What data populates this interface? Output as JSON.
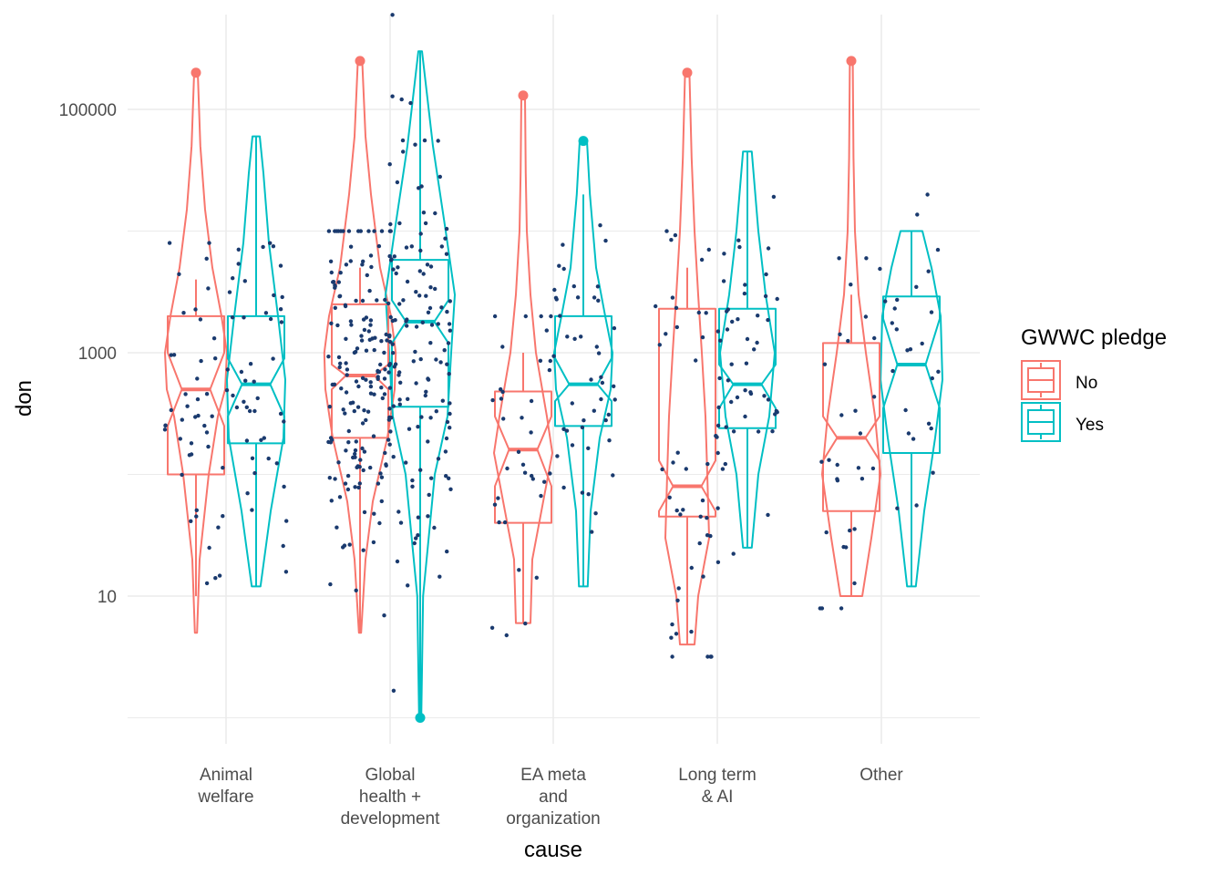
{
  "chart_data": {
    "type": "violin",
    "overlays": [
      "notched-boxplot",
      "jittered-points",
      "outlier-points"
    ],
    "xlabel": "cause",
    "ylabel": "don",
    "y_scale": "log10",
    "y_ticks": [
      10,
      1000,
      100000
    ],
    "ylim": [
      1,
      350000
    ],
    "grid": true,
    "legend": {
      "title": "GWWC pledge",
      "position": "right",
      "entries": [
        "No",
        "Yes"
      ]
    },
    "colors": {
      "No": "#F8766D",
      "Yes": "#00BFC4",
      "points": "#1a3a6e",
      "grid": "#ebebeb"
    },
    "categories": [
      [
        "Animal",
        "welfare"
      ],
      [
        "Global",
        "health +",
        "development"
      ],
      [
        "EA meta",
        "and",
        "organization"
      ],
      [
        "Long term",
        "& AI"
      ],
      [
        "Other"
      ]
    ],
    "series": [
      {
        "name": "No",
        "boxes": [
          {
            "lower": 10,
            "q1": 100,
            "median": 500,
            "q3": 2000,
            "upper": 4000,
            "notch": [
              250,
              1000
            ],
            "outliers": [
              200000
            ]
          },
          {
            "lower": 5,
            "q1": 200,
            "median": 650,
            "q3": 2500,
            "upper": 5000,
            "notch": [
              500,
              800
            ],
            "outliers": [
              250000
            ]
          },
          {
            "lower": 6,
            "q1": 40,
            "median": 160,
            "q3": 480,
            "upper": 1000,
            "notch": [
              80,
              300
            ],
            "outliers": [
              130000
            ]
          },
          {
            "lower": 4,
            "q1": 45,
            "median": 80,
            "q3": 2300,
            "upper": 5000,
            "notch": [
              50,
              130
            ],
            "outliers": [
              200000
            ]
          },
          {
            "lower": 10,
            "q1": 50,
            "median": 200,
            "q3": 1200,
            "upper": 3000,
            "notch": [
              130,
              300
            ],
            "outliers": [
              250000
            ]
          }
        ],
        "violins": [
          {
            "y": [
              5,
              20,
              100,
              300,
              500,
              1000,
              2000,
              5000,
              15000,
              50000,
              200000
            ],
            "width": [
              0.03,
              0.1,
              0.35,
              0.6,
              0.8,
              0.85,
              0.7,
              0.45,
              0.25,
              0.12,
              0.05
            ]
          },
          {
            "y": [
              5,
              20,
              60,
              200,
              500,
              1000,
              2000,
              5000,
              20000,
              60000,
              250000
            ],
            "width": [
              0.03,
              0.15,
              0.35,
              0.75,
              0.95,
              0.98,
              0.85,
              0.55,
              0.3,
              0.15,
              0.06
            ]
          },
          {
            "y": [
              6,
              20,
              60,
              150,
              300,
              1000,
              3000,
              10000,
              30000,
              130000
            ],
            "width": [
              0.2,
              0.25,
              0.55,
              0.8,
              0.65,
              0.35,
              0.2,
              0.1,
              0.07,
              0.05
            ]
          },
          {
            "y": [
              4,
              10,
              30,
              100,
              300,
              1000,
              3000,
              10000,
              40000,
              200000
            ],
            "width": [
              0.2,
              0.3,
              0.6,
              0.55,
              0.5,
              0.4,
              0.3,
              0.2,
              0.12,
              0.06
            ]
          },
          {
            "y": [
              10,
              30,
              100,
              300,
              1000,
              3000,
              10000,
              40000,
              250000
            ],
            "width": [
              0.3,
              0.55,
              0.8,
              0.65,
              0.4,
              0.2,
              0.1,
              0.06,
              0.04
            ]
          }
        ]
      },
      {
        "name": "Yes",
        "boxes": [
          {
            "lower": 12,
            "q1": 180,
            "median": 550,
            "q3": 2000,
            "upper": 60000,
            "notch": [
              300,
              900
            ],
            "outliers": []
          },
          {
            "lower": 1,
            "q1": 360,
            "median": 1800,
            "q3": 5800,
            "upper": 300000,
            "notch": [
              1200,
              2700
            ],
            "outliers": [
              1
            ]
          },
          {
            "lower": 12,
            "q1": 250,
            "median": 550,
            "q3": 2000,
            "upper": 20000,
            "notch": [
              400,
              900
            ],
            "outliers": [
              55000
            ]
          },
          {
            "lower": 25,
            "q1": 240,
            "median": 550,
            "q3": 2300,
            "upper": 45000,
            "notch": [
              350,
              800
            ],
            "outliers": []
          },
          {
            "lower": 12,
            "q1": 150,
            "median": 800,
            "q3": 2900,
            "upper": 10000,
            "notch": [
              350,
              1900
            ],
            "outliers": []
          }
        ],
        "violins": [
          {
            "y": [
              12,
              50,
              200,
              600,
              2000,
              8000,
              30000,
              60000
            ],
            "width": [
              0.12,
              0.4,
              0.75,
              0.8,
              0.6,
              0.35,
              0.2,
              0.1
            ]
          },
          {
            "y": [
              1,
              10,
              100,
              300,
              1000,
              3000,
              10000,
              50000,
              300000
            ],
            "width": [
              0.03,
              0.08,
              0.4,
              0.75,
              0.85,
              0.95,
              0.7,
              0.35,
              0.05
            ]
          },
          {
            "y": [
              12,
              50,
              200,
              500,
              1000,
              2000,
              5000,
              20000,
              55000
            ],
            "width": [
              0.12,
              0.2,
              0.45,
              0.75,
              0.8,
              0.6,
              0.35,
              0.18,
              0.1
            ]
          },
          {
            "y": [
              25,
              100,
              300,
              1000,
              3000,
              10000,
              45000
            ],
            "width": [
              0.12,
              0.3,
              0.6,
              0.75,
              0.5,
              0.3,
              0.12
            ]
          },
          {
            "y": [
              12,
              50,
              200,
              600,
              2000,
              5000,
              10000
            ],
            "width": [
              0.12,
              0.35,
              0.65,
              0.85,
              0.8,
              0.55,
              0.3
            ]
          }
        ]
      }
    ],
    "jitter_counts": [
      {
        "No": 45,
        "Yes": 45
      },
      {
        "No": 170,
        "Yes": 130
      },
      {
        "No": 35,
        "Yes": 45
      },
      {
        "No": 45,
        "Yes": 50
      },
      {
        "No": 30,
        "Yes": 25
      }
    ]
  }
}
